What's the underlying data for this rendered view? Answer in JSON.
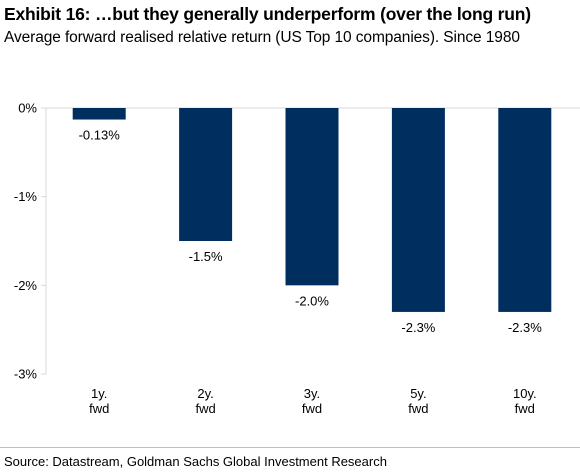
{
  "title": "Exhibit 16: …but they generally underperform (over the long run)",
  "subtitle": "Average forward realised relative return (US Top 10 companies). Since 1980",
  "source": "Source: Datastream, Goldman Sachs Global Investment Research",
  "colors": {
    "bar": "#002f5f",
    "axis": "#d9d9d9",
    "divider": "#bfbfbf"
  },
  "chart_data": {
    "type": "bar",
    "categories": [
      [
        "1y.",
        "fwd"
      ],
      [
        "2y.",
        "fwd"
      ],
      [
        "3y.",
        "fwd"
      ],
      [
        "5y.",
        "fwd"
      ],
      [
        "10y.",
        "fwd"
      ]
    ],
    "values": [
      -0.13,
      -1.5,
      -2.0,
      -2.3,
      -2.3
    ],
    "data_labels": [
      "-0.13%",
      "-1.5%",
      "-2.0%",
      "-2.3%",
      "-2.3%"
    ],
    "y_ticks": [
      0,
      -1,
      -2,
      -3
    ],
    "y_tick_labels": [
      "0%",
      "-1%",
      "-2%",
      "-3%"
    ],
    "ylim": [
      -3,
      0
    ],
    "grid": false,
    "legend": "none"
  }
}
